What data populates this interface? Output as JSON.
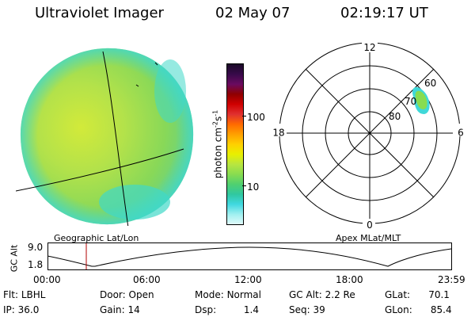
{
  "header": {
    "title": "Ultraviolet Imager",
    "date": "02 May 07",
    "time": "02:19:17 UT"
  },
  "colorbar": {
    "units_label": "photon cm",
    "units_exp": "-2",
    "units_s": "s",
    "units_s_exp": "-1",
    "tick_100": "100",
    "tick_10": "10",
    "colors": [
      "#1a0a28",
      "#380a4a",
      "#6a0a60",
      "#900000",
      "#d00000",
      "#e03030",
      "#ff6a00",
      "#ffa000",
      "#ffd000",
      "#e8f000",
      "#b8e640",
      "#88dc50",
      "#50d070",
      "#30c8a0",
      "#40d8e0",
      "#a0f0f0",
      "#e0fafa"
    ]
  },
  "polar_plot": {
    "mlt_12": "12",
    "mlt_18": "18",
    "mlt_6": "6",
    "mlt_0": "0",
    "lat_60": "60",
    "lat_70": "70",
    "lat_80": "80"
  },
  "timeline": {
    "left_label": "Geographic Lat/Lon",
    "right_label": "Apex MLat/MLT",
    "axis_title": "GC Alt",
    "y_max": "9.0",
    "y_min": "1.8",
    "x_ticks": [
      "00:00",
      "06:00",
      "12:00",
      "18:00",
      "23:59"
    ]
  },
  "status": {
    "row1": [
      {
        "label": "Flt:",
        "value": "LBHL"
      },
      {
        "label": "Door:",
        "value": "Open"
      },
      {
        "label": "Mode:",
        "value": "Normal"
      },
      {
        "label": "GC Alt:",
        "value": "2.2 Re"
      },
      {
        "label": "GLat:",
        "value": "70.1"
      }
    ],
    "row2": [
      {
        "label": "IP:",
        "value": "36.0"
      },
      {
        "label": "Gain:",
        "value": "14"
      },
      {
        "label": "Dsp:",
        "value": "1.4"
      },
      {
        "label": "Seq:",
        "value": "39"
      },
      {
        "label": "GLon:",
        "value": "85.4"
      }
    ]
  }
}
